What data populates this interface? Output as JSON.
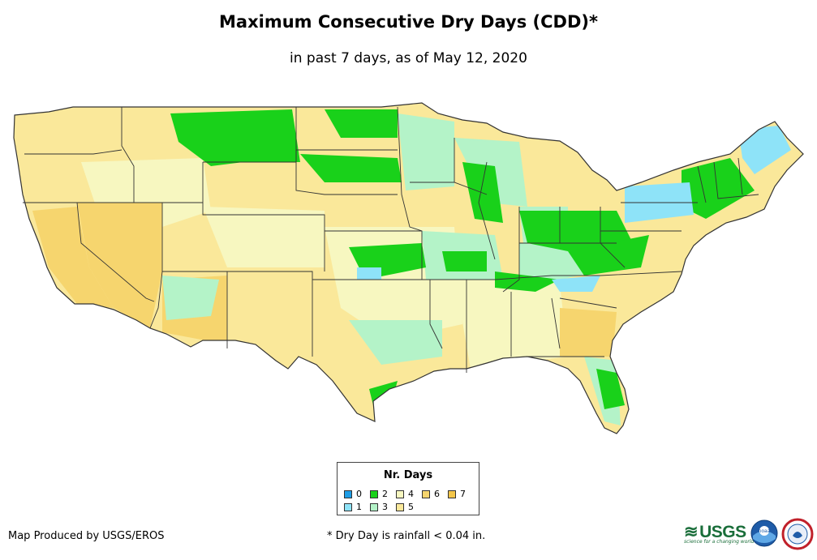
{
  "title": "Maximum Consecutive Dry Days (CDD)*",
  "subtitle": "in past 7 days, as of May 12, 2020",
  "legend": {
    "title": "Nr. Days",
    "items": [
      {
        "label": "0",
        "color": "#1e9de6"
      },
      {
        "label": "1",
        "color": "#8ee3f8"
      },
      {
        "label": "2",
        "color": "#19d11a"
      },
      {
        "label": "3",
        "color": "#b4f3c8"
      },
      {
        "label": "4",
        "color": "#f7f7c0"
      },
      {
        "label": "5",
        "color": "#fae89a"
      },
      {
        "label": "6",
        "color": "#f6d56e"
      },
      {
        "label": "7",
        "color": "#f3c64a"
      }
    ]
  },
  "credit": "Map Produced by USGS/EROS",
  "footnote": "* Dry Day is rainfall < 0.04 in.",
  "logos": {
    "usgs": "USGS",
    "usgs_tagline": "science for a changing world",
    "noaa": "noaa"
  },
  "map": {
    "land_color": "#fae89a",
    "border_color": "#333333",
    "water_color": "#ffffff"
  }
}
